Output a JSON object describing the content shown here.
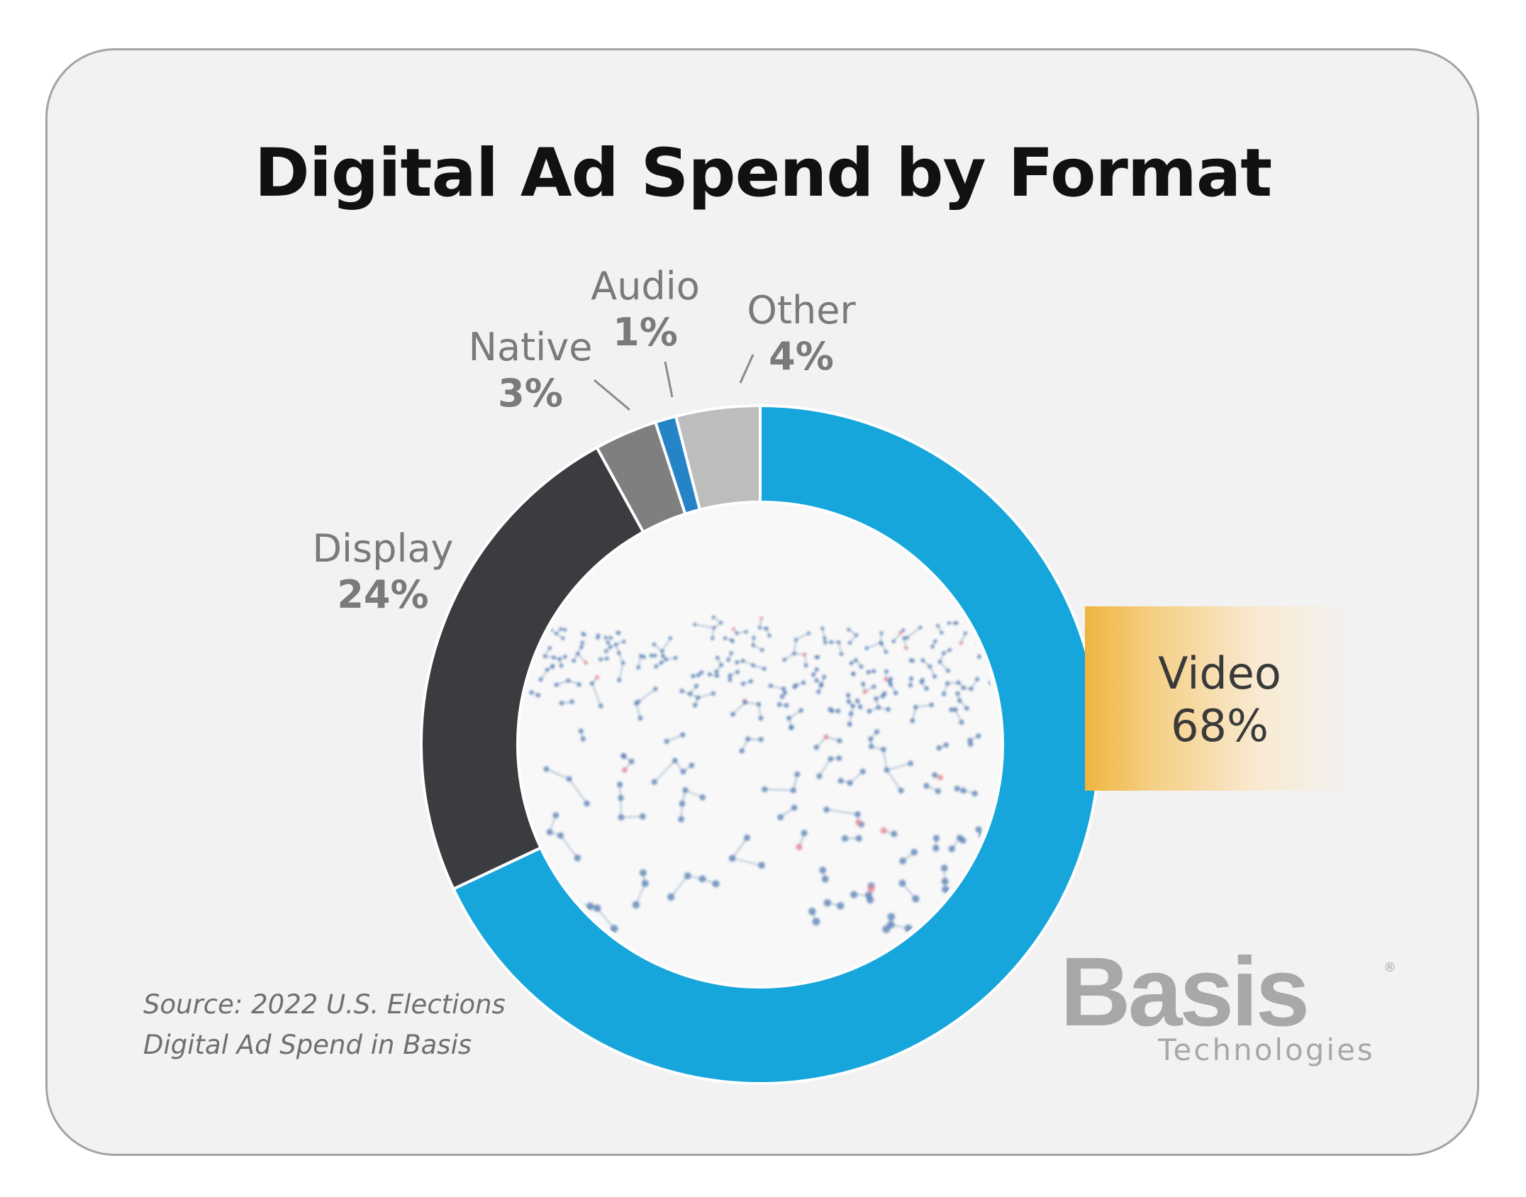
{
  "title": "Digital Ad Spend by Format",
  "source": {
    "line1": "Source: 2022 U.S. Elections",
    "line2": "Digital Ad Spend in Basis"
  },
  "logo": {
    "name": "Basis",
    "sub": "Technologies",
    "reg": "®"
  },
  "colors": {
    "video": "#16a6db",
    "display": "#3b3c40",
    "native": "#7f7f7f",
    "audio": "#2584c6",
    "other": "#bdbdbd",
    "highlight": "#efb43f"
  },
  "chart_data": {
    "type": "pie",
    "title": "Digital Ad Spend by Format",
    "categories": [
      "Video",
      "Display",
      "Native",
      "Audio",
      "Other"
    ],
    "values": [
      68,
      24,
      3,
      1,
      4
    ],
    "labels": [
      "68%",
      "24%",
      "3%",
      "1%",
      "4%"
    ],
    "unit": "%",
    "style": "donut"
  }
}
